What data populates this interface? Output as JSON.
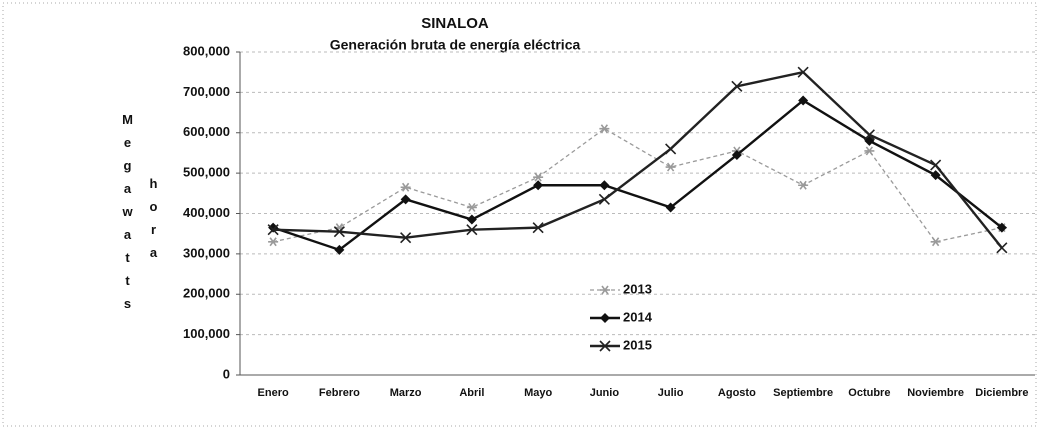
{
  "chart_data": {
    "type": "line",
    "title": "SINALOA",
    "subtitle": "Generación bruta de energía eléctrica",
    "ylabel": [
      "Megawatts",
      "hora"
    ],
    "categories": [
      "Enero",
      "Febrero",
      "Marzo",
      "Abril",
      "Mayo",
      "Junio",
      "Julio",
      "Agosto",
      "Septiembre",
      "Octubre",
      "Noviembre",
      "Diciembre"
    ],
    "series": [
      {
        "name": "2013",
        "color": "#9a9a9a",
        "marker": "star",
        "dashed": true,
        "values": [
          330000,
          365000,
          465000,
          415000,
          490000,
          610000,
          515000,
          555000,
          470000,
          555000,
          330000,
          365000
        ]
      },
      {
        "name": "2014",
        "color": "#111111",
        "marker": "diamond",
        "dashed": false,
        "values": [
          365000,
          310000,
          435000,
          385000,
          470000,
          470000,
          415000,
          545000,
          680000,
          580000,
          495000,
          365000
        ]
      },
      {
        "name": "2015",
        "color": "#222222",
        "marker": "x",
        "dashed": false,
        "values": [
          360000,
          355000,
          340000,
          360000,
          365000,
          435000,
          560000,
          715000,
          750000,
          595000,
          520000,
          315000
        ]
      }
    ],
    "ylim": [
      0,
      800000
    ],
    "yticks": [
      0,
      {
        "value": 100000,
        "label": "100,000"
      },
      {
        "value": 200000,
        "label": "200,000"
      },
      {
        "value": 300000,
        "label": "300,000"
      },
      {
        "value": 400000,
        "label": "400,000"
      },
      {
        "value": 500000,
        "label": "500,000"
      },
      {
        "value": 600000,
        "label": "600,000"
      },
      {
        "value": 700000,
        "label": "700,000"
      },
      {
        "value": 800000,
        "label": "800,000"
      }
    ],
    "grid": true
  }
}
